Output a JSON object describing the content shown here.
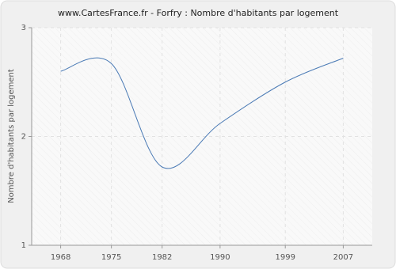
{
  "chart_data": {
    "type": "line",
    "title": "www.CartesFrance.fr - Forfry : Nombre d'habitants par logement",
    "y_label": "Nombre d'habitants par logement",
    "x": [
      1968,
      1975,
      1982,
      1990,
      1999,
      2007
    ],
    "series": [
      {
        "name": "Nombre d'habitants par logement",
        "color": "#4a7ab5",
        "values": [
          2.6,
          2.67,
          1.72,
          2.12,
          2.5,
          2.72
        ]
      }
    ],
    "xlim": [
      1964,
      2011
    ],
    "xticks": [
      1968,
      1975,
      1982,
      1990,
      1999,
      2007
    ],
    "ylim": [
      1,
      3
    ],
    "yticks": [
      1,
      2,
      3
    ],
    "grid": true
  }
}
